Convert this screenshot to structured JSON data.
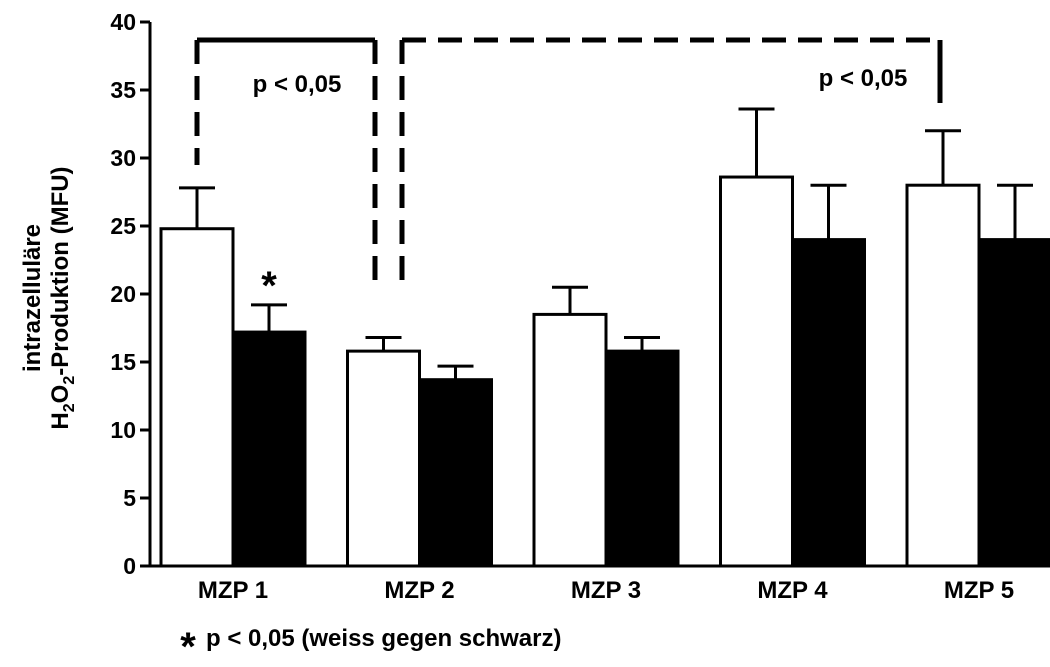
{
  "chart_data": {
    "type": "bar",
    "categories": [
      "MZP 1",
      "MZP 2",
      "MZP 3",
      "MZP 4",
      "MZP 5"
    ],
    "series": [
      {
        "fill": "white",
        "values": [
          24.8,
          15.8,
          18.5,
          28.6,
          28.0
        ],
        "errors": [
          3.0,
          1.0,
          2.0,
          5.0,
          4.0
        ]
      },
      {
        "fill": "black",
        "values": [
          17.2,
          13.7,
          15.8,
          24.0,
          24.0
        ],
        "errors": [
          2.0,
          1.0,
          1.0,
          4.0,
          4.0
        ]
      }
    ],
    "ylabel_line1": "intrazelluläre",
    "ylabel_line2": {
      "h": "H",
      "sub1": "2",
      "o": "O",
      "sub2": "2",
      "rest": "-Produktion (MFU)"
    },
    "ylim": [
      0,
      40
    ],
    "yticks": [
      0,
      5,
      10,
      15,
      20,
      25,
      30,
      35,
      40
    ],
    "grid": false,
    "significance": [
      {
        "label": "p < 0,05",
        "between": [
          "MZP 1",
          "MZP 2"
        ],
        "style": "solid-dashed bracket"
      },
      {
        "label": "p < 0,05",
        "between": [
          "MZP 2",
          "MZP 5"
        ],
        "style": "dashed bracket"
      }
    ],
    "star_marker": {
      "symbol": "*",
      "category": "MZP 1",
      "series": 1
    },
    "footnote": {
      "symbol": "*",
      "text": "p < 0,05 (weiss gegen schwarz)"
    }
  }
}
